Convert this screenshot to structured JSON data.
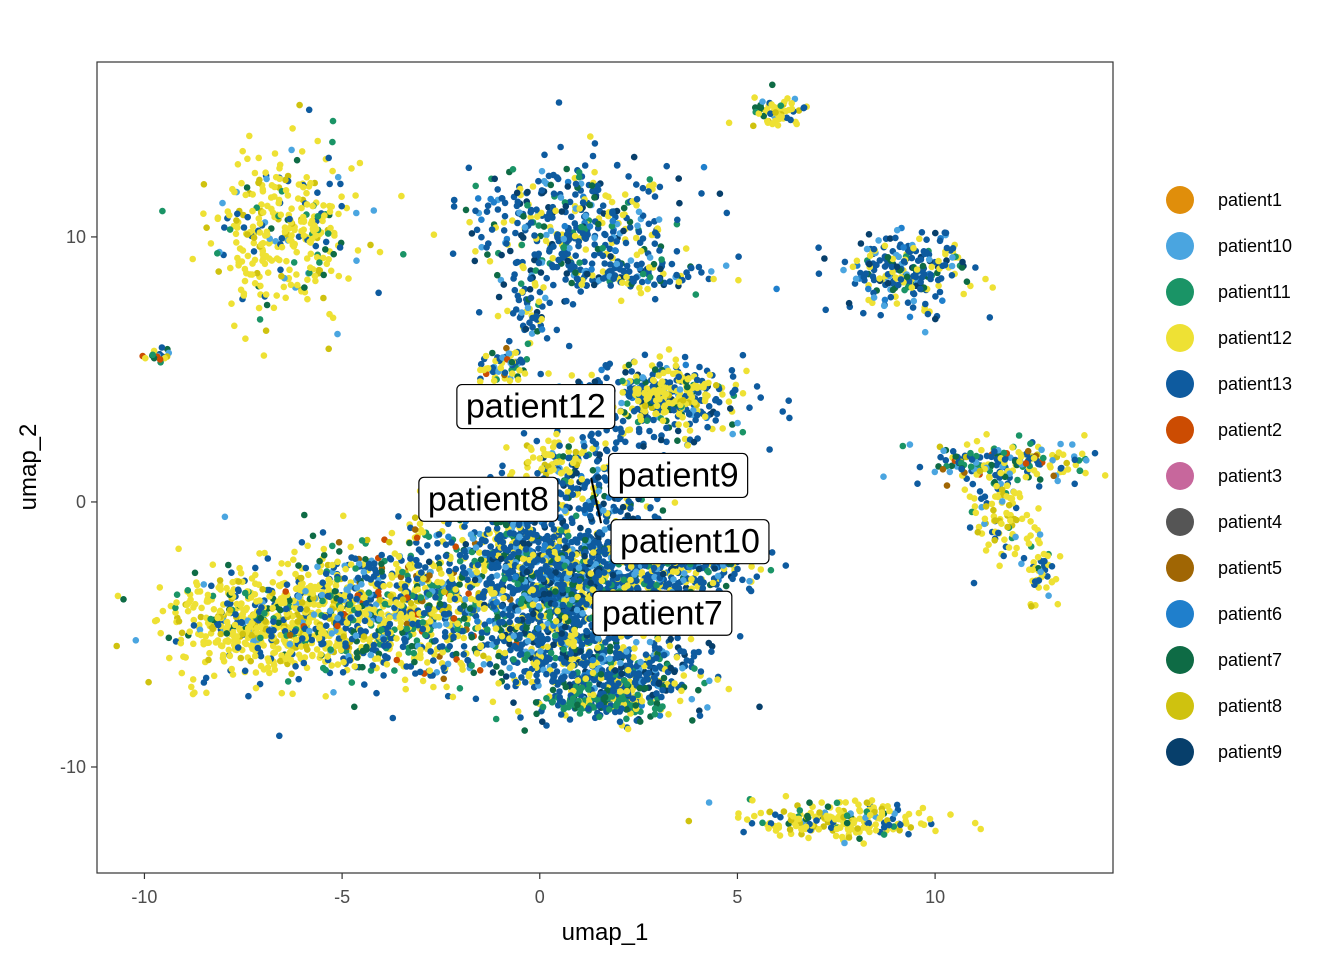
{
  "chart_data": {
    "type": "scatter",
    "xlabel": "umap_1",
    "ylabel": "umap_2",
    "xlim": [
      -11.2,
      14.5
    ],
    "ylim": [
      -14.0,
      16.6
    ],
    "x_ticks": [
      -10,
      -5,
      0,
      5,
      10
    ],
    "x_tick_labels": [
      "-10",
      "-5",
      "0",
      "5",
      "10"
    ],
    "y_ticks": [
      -10,
      0,
      10
    ],
    "y_tick_labels": [
      "-10",
      "0",
      "10"
    ],
    "grid": false,
    "legend_position": "right",
    "series": [
      {
        "name": "patient1",
        "color": "#E08E0B"
      },
      {
        "name": "patient10",
        "color": "#4AA5E0"
      },
      {
        "name": "patient11",
        "color": "#1A9466"
      },
      {
        "name": "patient12",
        "color": "#EEE134"
      },
      {
        "name": "patient13",
        "color": "#0E5B9F"
      },
      {
        "name": "patient2",
        "color": "#CC4C02"
      },
      {
        "name": "patient3",
        "color": "#C7679C"
      },
      {
        "name": "patient4",
        "color": "#555555"
      },
      {
        "name": "patient5",
        "color": "#A06604"
      },
      {
        "name": "patient6",
        "color": "#1F7FCC"
      },
      {
        "name": "patient7",
        "color": "#0E6B45"
      },
      {
        "name": "patient8",
        "color": "#CFC20F"
      },
      {
        "name": "patient9",
        "color": "#073F6B"
      }
    ],
    "clusters": [
      {
        "x": -6.4,
        "y": 10.3,
        "sx": 0.9,
        "sy": 1.6,
        "n": 340,
        "mix": "yellow"
      },
      {
        "x": -9.7,
        "y": 5.5,
        "sx": 0.2,
        "sy": 0.18,
        "n": 20,
        "mix": "mixed"
      },
      {
        "x": 0.8,
        "y": 10.4,
        "sx": 1.3,
        "sy": 1.2,
        "n": 420,
        "mix": "blue"
      },
      {
        "x": 2.4,
        "y": 8.6,
        "sx": 0.9,
        "sy": 0.35,
        "n": 110,
        "mix": "blue"
      },
      {
        "x": -0.3,
        "y": 7.2,
        "sx": 0.35,
        "sy": 0.8,
        "n": 60,
        "mix": "blue"
      },
      {
        "x": -0.8,
        "y": 5.1,
        "sx": 0.35,
        "sy": 0.35,
        "n": 60,
        "mix": "mixed"
      },
      {
        "x": 6.0,
        "y": 14.8,
        "sx": 0.35,
        "sy": 0.3,
        "n": 60,
        "mix": "yellow"
      },
      {
        "x": 9.3,
        "y": 8.7,
        "sx": 0.8,
        "sy": 0.75,
        "n": 240,
        "mix": "blue"
      },
      {
        "x": 11.9,
        "y": 1.4,
        "sx": 1.0,
        "sy": 0.45,
        "n": 200,
        "mix": "mixed"
      },
      {
        "x": 11.7,
        "y": -0.6,
        "sx": 0.35,
        "sy": 0.8,
        "n": 90,
        "mix": "yellow"
      },
      {
        "x": 12.7,
        "y": -2.6,
        "sx": 0.2,
        "sy": 0.6,
        "n": 45,
        "mix": "yellow"
      },
      {
        "x": 7.8,
        "y": -12.0,
        "sx": 1.2,
        "sy": 0.35,
        "n": 220,
        "mix": "yellow"
      },
      {
        "x": 3.0,
        "y": 3.8,
        "sx": 1.2,
        "sy": 0.8,
        "n": 300,
        "mix": "blue"
      },
      {
        "x": 3.4,
        "y": 4.2,
        "sx": 0.6,
        "sy": 0.5,
        "n": 120,
        "mix": "yellow"
      },
      {
        "x": 1.5,
        "y": 0.2,
        "sx": 0.8,
        "sy": 1.5,
        "n": 260,
        "mix": "blue"
      },
      {
        "x": 0.4,
        "y": 1.5,
        "sx": 0.45,
        "sy": 0.45,
        "n": 60,
        "mix": "yellow"
      },
      {
        "x": -6.6,
        "y": -4.5,
        "sx": 1.4,
        "sy": 1.0,
        "n": 700,
        "mix": "yellow"
      },
      {
        "x": -3.2,
        "y": -4.0,
        "sx": 1.6,
        "sy": 1.4,
        "n": 900,
        "mix": "mixed"
      },
      {
        "x": 0.4,
        "y": -4.0,
        "sx": 1.1,
        "sy": 1.6,
        "n": 800,
        "mix": "blue"
      },
      {
        "x": 1.8,
        "y": -3.0,
        "sx": 1.1,
        "sy": 0.9,
        "n": 420,
        "mix": "blue"
      },
      {
        "x": 3.6,
        "y": -2.5,
        "sx": 0.9,
        "sy": 0.5,
        "n": 250,
        "mix": "blue"
      },
      {
        "x": 1.9,
        "y": -6.5,
        "sx": 1.1,
        "sy": 0.7,
        "n": 420,
        "mix": "blue"
      },
      {
        "x": 1.5,
        "y": -7.6,
        "sx": 0.8,
        "sy": 0.3,
        "n": 150,
        "mix": "green"
      },
      {
        "x": -0.4,
        "y": -1.7,
        "sx": 0.9,
        "sy": 1.0,
        "n": 300,
        "mix": "blue"
      }
    ],
    "annotations": [
      {
        "label": "patient12",
        "x": -0.1,
        "y": 3.6
      },
      {
        "label": "patient8",
        "x": -1.3,
        "y": 0.1
      },
      {
        "label": "patient9",
        "x": 3.5,
        "y": 1.0
      },
      {
        "label": "patient10",
        "x": 3.8,
        "y": -1.5
      },
      {
        "label": "patient7",
        "x": 3.1,
        "y": -4.2
      }
    ],
    "annotation_connectors": [
      {
        "x1": 1.3,
        "y1": 0.9,
        "x2": 1.55,
        "y2": -0.8
      }
    ]
  }
}
